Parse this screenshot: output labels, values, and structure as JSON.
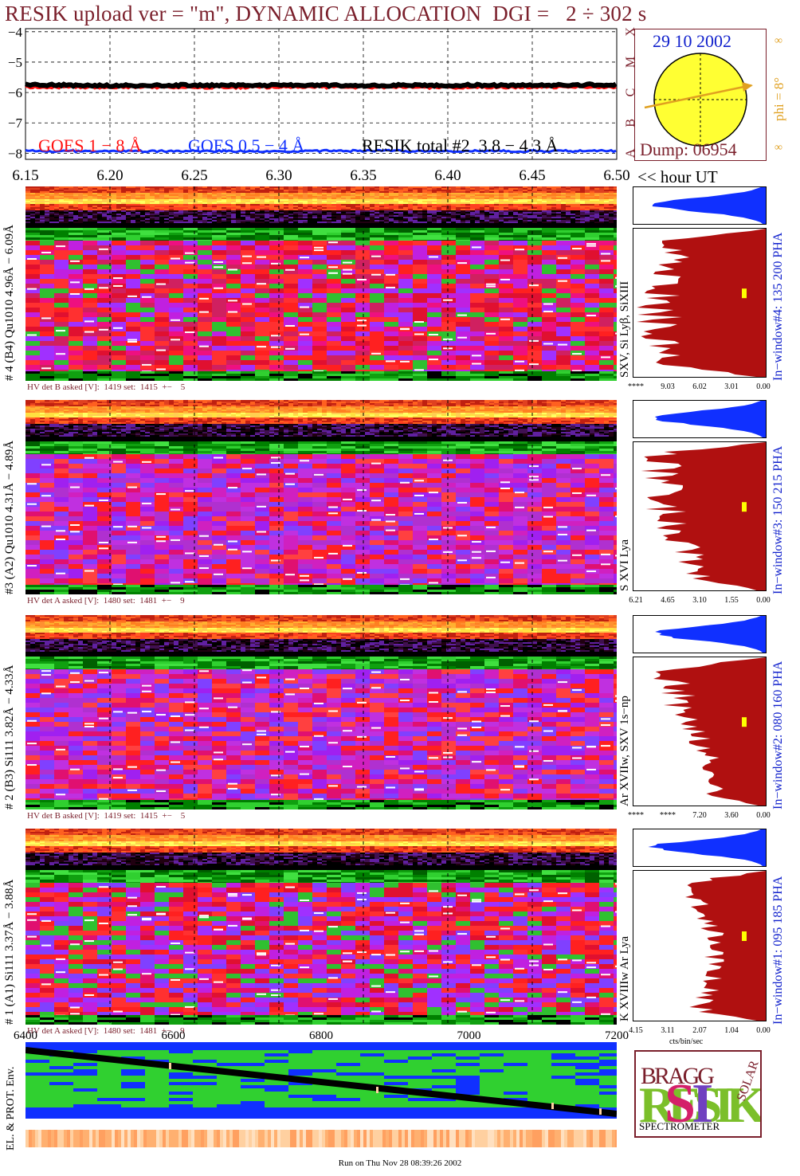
{
  "title": "RESIK upload ver = \"m\", DYNAMIC ALLOCATION  DGI =   2 ÷ 302 s",
  "goes": {
    "y_ticks": [
      "−4",
      "−5",
      "−6",
      "−7",
      "−8"
    ],
    "class_letters": [
      "X",
      "M",
      "C",
      "B",
      "A"
    ],
    "legend_goes18": "GOES 1 − 8 Å",
    "legend_goes054": "GOES 0.5 − 4 Å",
    "legend_resik": "RESIK total #2  3.8 − 4.3 Å",
    "color_goes18": "#ff1010",
    "color_goes054": "#1030ff"
  },
  "sun": {
    "date": "29 10 2002",
    "dump": "Dump: 06954",
    "phi_label": "phi =  8°",
    "infinity": "∞",
    "sun_color": "#ffff33",
    "arrow_color": "#e0a020"
  },
  "time_axis": {
    "ticks": [
      "6.15",
      "6.20",
      "6.25",
      "6.30",
      "6.35",
      "6.40",
      "6.45",
      "6.50"
    ],
    "unit": "<< hour UT"
  },
  "channels": [
    {
      "label": "# 4 (B4) Qu1010 4.96Å − 6.09Å",
      "lines": "SXV, Si Lyβ, SiXIII",
      "inwindow": "In−window#4:  135 200 PHA",
      "hv": "HV det B asked [V]:  1419 set:  1415  +−    5",
      "scale": [
        "****",
        "9.03",
        "6.02",
        "3.01",
        "0.00"
      ],
      "scheme": "violet_low"
    },
    {
      "label": "#3 (A2) Qu1010  4.31Å − 4.89Å",
      "lines": "S XVI Lya",
      "inwindow": "In−window#3:  150 215 PHA",
      "hv": "HV det A asked [V]:  1480 set:  1481  +−    9",
      "scale": [
        "6.21",
        "4.65",
        "3.10",
        "1.55",
        "0.00"
      ],
      "scheme": "violet_high"
    },
    {
      "label": "# 2 (B3) Si111  3.82Å − 4.33Å",
      "lines": "Ar XVIIw,  SXV 1s−np",
      "inwindow": "In−window#2:  080 160 PHA",
      "hv": "HV det B asked [V]:  1419 set:  1415  +−    5",
      "scale": [
        "****",
        "****",
        "7.20",
        "3.60",
        "0.00"
      ],
      "scheme": "violet_high"
    },
    {
      "label": "# 1 (A1) Si111  3.37Å − 3.88Å",
      "lines": "K XVIIIw  Ar Lya",
      "inwindow": "In−window#1:  095 185 PHA",
      "hv": "HV det A asked [V]:  1480 set:  1481  +−    9",
      "scale": [
        "4.15",
        "3.11",
        "2.07",
        "1.04",
        "0.00"
      ],
      "scheme": "violet_mid"
    }
  ],
  "hist_unit": "cts/bin/sec",
  "lower_axis": {
    "ticks": [
      "6400",
      "6600",
      "6800",
      "7000",
      "7200"
    ]
  },
  "env_label": "EL. & PROT. Env.",
  "logo": {
    "letters": "RESIK",
    "bragg": "BRAGG",
    "solar": "SOLAR",
    "name": "SPECTROMETER"
  },
  "footer": "Run on Thu Nov 28 08:39:26 2002",
  "chart_data": {
    "type": "line",
    "x": [
      6.15,
      6.2,
      6.25,
      6.3,
      6.35,
      6.4,
      6.45,
      6.5
    ],
    "series": [
      {
        "name": "GOES 1 − 8 Å",
        "values": [
          -5.82,
          -5.82,
          -5.83,
          -5.82,
          -5.82,
          -5.83,
          -5.82,
          -5.81
        ]
      },
      {
        "name": "GOES 0.5 − 4 Å",
        "values": [
          -7.93,
          -7.93,
          -7.93,
          -7.93,
          -7.92,
          -7.93,
          -7.93,
          -7.92
        ]
      },
      {
        "name": "RESIK total #2  3.8 − 4.3 Å",
        "values": [
          -5.75,
          -5.77,
          -5.76,
          -5.76,
          -5.77,
          -5.76,
          -5.76,
          -5.74
        ]
      }
    ],
    "title": "RESIK upload ver = \"m\", DYNAMIC ALLOCATION  DGI =   2 ÷ 302 s",
    "xlabel": "<< hour UT",
    "ylabel": "",
    "xlim": [
      6.15,
      6.5
    ],
    "ylim": [
      -8.2,
      -3.9
    ],
    "grid": true
  }
}
